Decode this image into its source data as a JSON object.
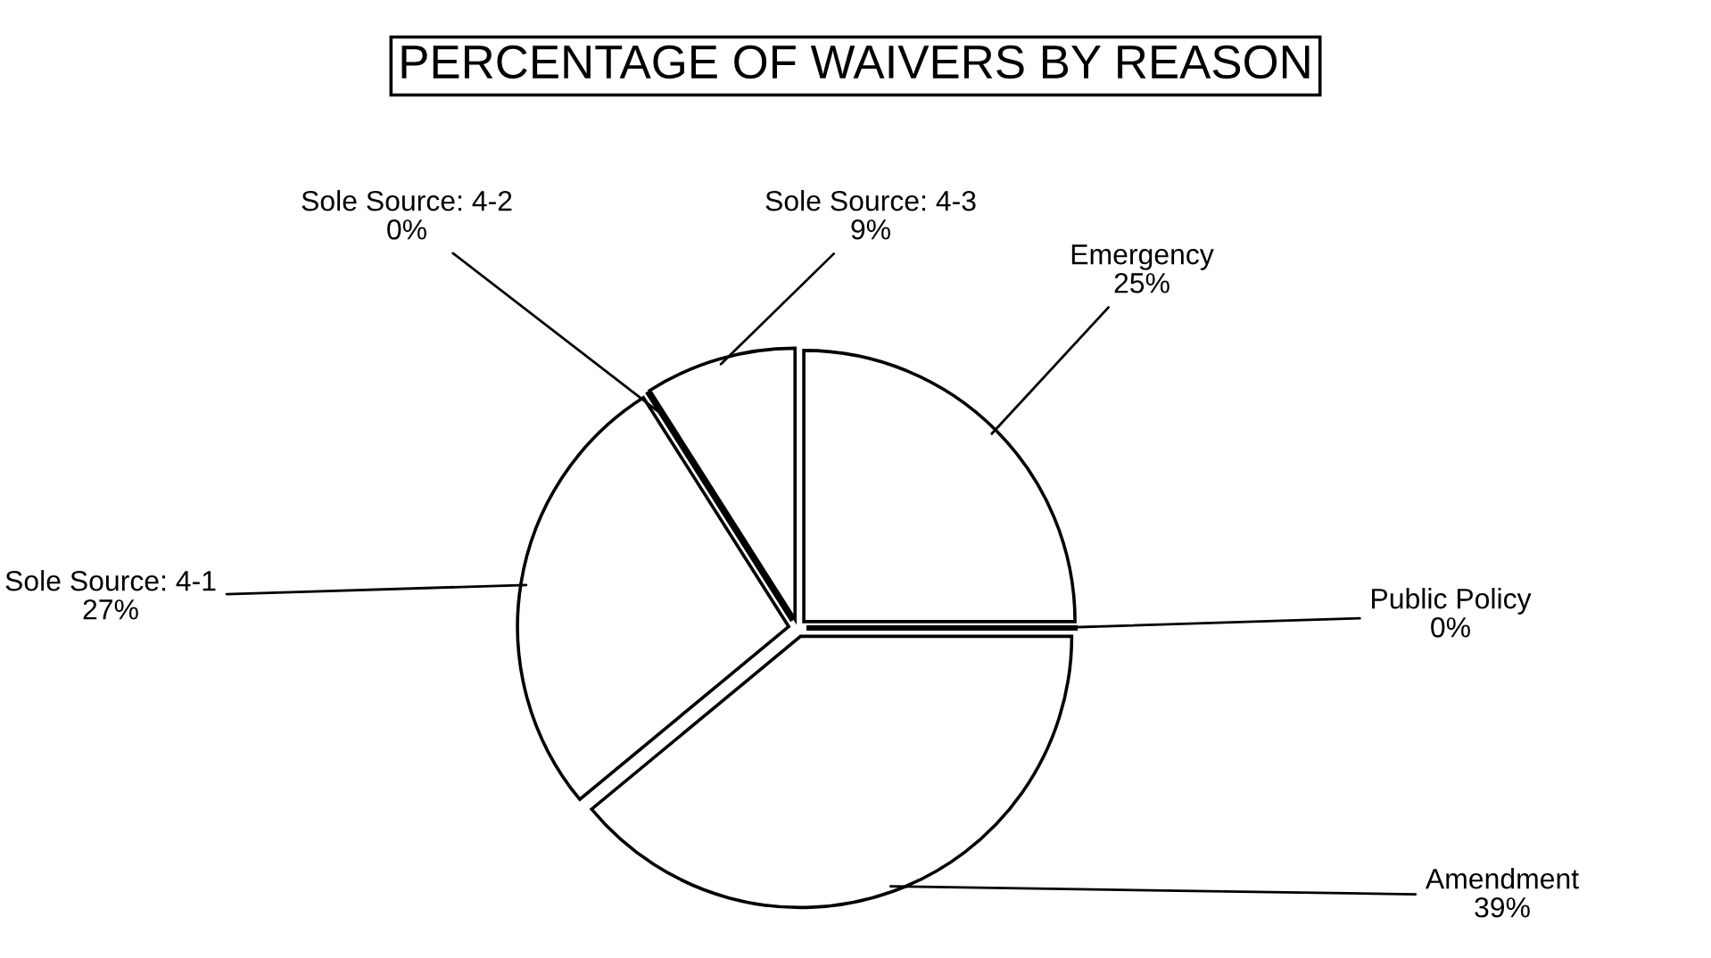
{
  "chart_data": {
    "type": "pie",
    "title": "PERCENTAGE OF WAIVERS BY REASON",
    "categories": [
      "Emergency",
      "Public Policy",
      "Amendment",
      "Sole Source: 4-1",
      "Sole Source: 4-2",
      "Sole Source: 4-3"
    ],
    "values": [
      25,
      0,
      39,
      27,
      0,
      9
    ],
    "value_labels": [
      "25%",
      "0%",
      "39%",
      "27%",
      "0%",
      "9%"
    ],
    "colors": [
      "#ffffff",
      "#ffffff",
      "#ffffff",
      "#ffffff",
      "#ffffff",
      "#ffffff"
    ]
  }
}
